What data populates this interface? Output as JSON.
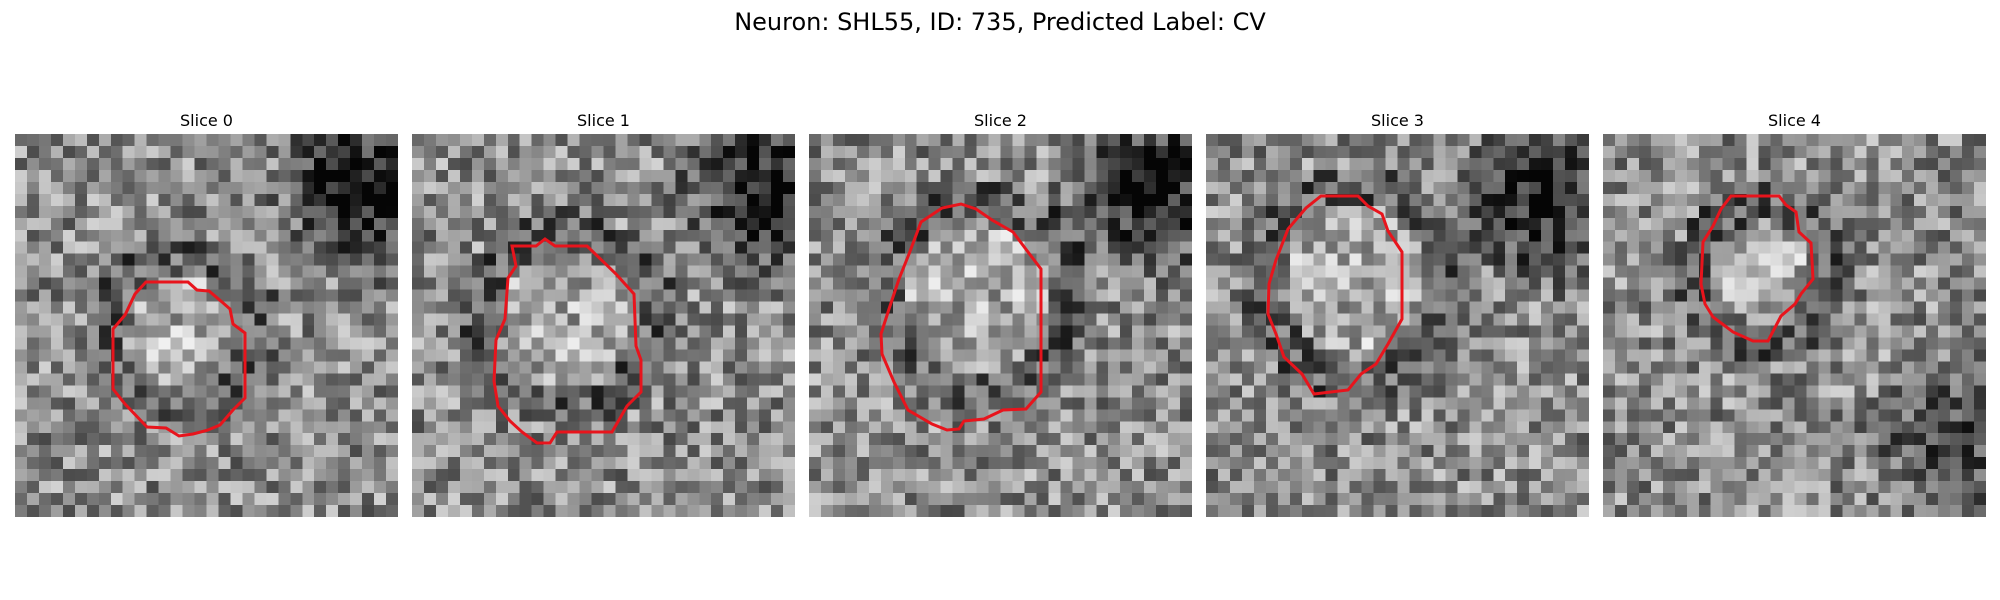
{
  "figure": {
    "title": "Neuron: SHL55, ID: 735, Predicted Label: CV"
  },
  "contour_color": "#e8141c",
  "panels": [
    {
      "title": "Slice 0"
    },
    {
      "title": "Slice 1"
    },
    {
      "title": "Slice 2"
    },
    {
      "title": "Slice 3"
    },
    {
      "title": "Slice 4"
    }
  ]
}
